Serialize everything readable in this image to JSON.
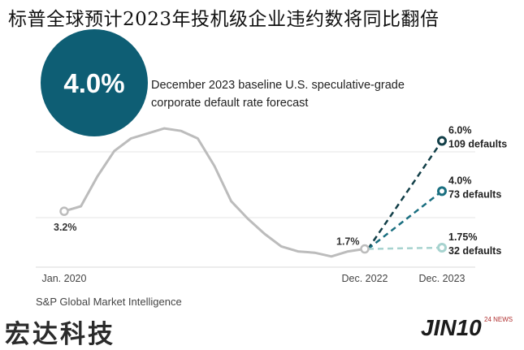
{
  "headline": "标普全球预计2023年投机级企业违约数将同比翻倍",
  "badge": "4.0%",
  "subtitle_line1": "December 2023 baseline U.S. speculative-grade",
  "subtitle_line2": "corporate default rate forecast",
  "source": "S&P Global Market Intelligence",
  "watermark_left": "宏达科技",
  "watermark_right": "JIN10",
  "watermark_right_small": "24 NEWS",
  "colors": {
    "history": "#bcbcbc",
    "pessimistic": "#123f48",
    "base": "#1a6f80",
    "optimistic": "#a7d3cf",
    "badge": "#0e5e74"
  },
  "chart_data": {
    "type": "line",
    "x_tick_labels": [
      "Jan. 2020",
      "Dec. 2022",
      "Dec. 2023"
    ],
    "history": {
      "x": [
        "Jan. 2020",
        "Mar. 2020",
        "May 2020",
        "Jul. 2020",
        "Sep. 2020",
        "Nov. 2020",
        "Jan. 2021",
        "Mar. 2021",
        "May 2021",
        "Jul. 2021",
        "Sep. 2021",
        "Nov. 2021",
        "Jan. 2022",
        "Mar. 2022",
        "May 2022",
        "Jul. 2022",
        "Sep. 2022",
        "Nov. 2022",
        "Dec. 2022"
      ],
      "y": [
        3.2,
        3.4,
        4.6,
        5.6,
        6.1,
        6.3,
        6.5,
        6.4,
        6.1,
        5.0,
        3.6,
        2.9,
        2.3,
        1.8,
        1.6,
        1.55,
        1.4,
        1.6,
        1.7
      ],
      "annotations": [
        {
          "label": "3.2%",
          "x": "Jan. 2020",
          "y": 3.2
        },
        {
          "label": "1.7%",
          "x": "Dec. 2022",
          "y": 1.7
        }
      ]
    },
    "forecasts": [
      {
        "rate": "6.0%",
        "defaults": "109 defaults",
        "y": 6.0
      },
      {
        "rate": "4.0%",
        "defaults": "73 defaults",
        "y": 4.0
      },
      {
        "rate": "1.75%",
        "defaults": "32 defaults",
        "y": 1.75
      }
    ]
  }
}
